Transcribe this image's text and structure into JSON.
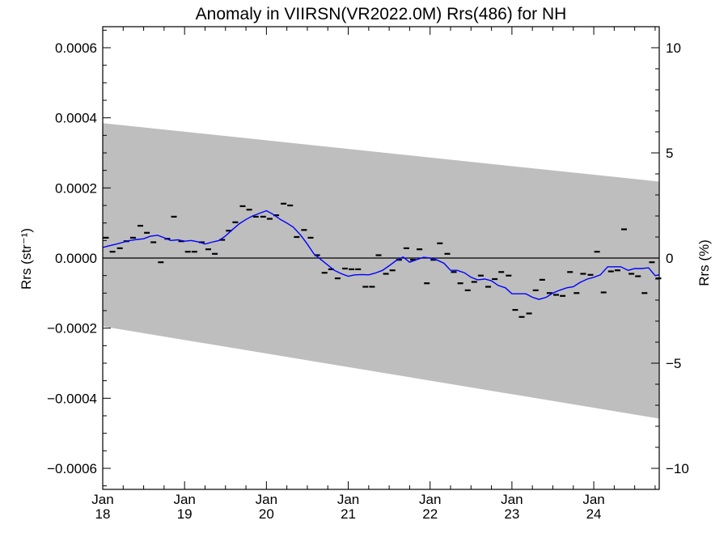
{
  "chart_data": {
    "type": "line",
    "title": "Anomaly in VIIRSN(VR2022.0M) Rrs(486) for NH",
    "ylabel_left": "Rrs (str⁻¹)",
    "ylabel_right": "Rrs (%)",
    "xlim": [
      2018.0,
      2024.8
    ],
    "ylim": [
      -0.00066,
      0.00066
    ],
    "ylim_right": [
      -11,
      11
    ],
    "y_ticks_left": [
      {
        "v": 0.0006,
        "label": "0.0006"
      },
      {
        "v": 0.0004,
        "label": "0.0004"
      },
      {
        "v": 0.0002,
        "label": "0.0002"
      },
      {
        "v": 0.0,
        "label": "0.0000"
      },
      {
        "v": -0.0002,
        "label": "−0.0002"
      },
      {
        "v": -0.0004,
        "label": "−0.0004"
      },
      {
        "v": -0.0006,
        "label": "−0.0006"
      }
    ],
    "y_ticks_right": [
      {
        "v": 10,
        "label": "10"
      },
      {
        "v": 5,
        "label": "5"
      },
      {
        "v": 0,
        "label": "0"
      },
      {
        "v": -5,
        "label": "−5"
      },
      {
        "v": -10,
        "label": "−10"
      }
    ],
    "x_ticks": [
      {
        "v": 2018.0,
        "month": "Jan",
        "year": "18"
      },
      {
        "v": 2019.0,
        "month": "Jan",
        "year": "19"
      },
      {
        "v": 2020.0,
        "month": "Jan",
        "year": "20"
      },
      {
        "v": 2021.0,
        "month": "Jan",
        "year": "21"
      },
      {
        "v": 2022.0,
        "month": "Jan",
        "year": "22"
      },
      {
        "v": 2023.0,
        "month": "Jan",
        "year": "23"
      },
      {
        "v": 2024.0,
        "month": "Jan",
        "year": "24"
      }
    ],
    "band": {
      "start": [
        2018.0,
        0.000385,
        -0.000195
      ],
      "end": [
        2024.8,
        0.000218,
        -0.000458
      ]
    },
    "zero_line": 0.0,
    "colors": {
      "band": "#bebebe",
      "line": "#0000ff",
      "points": "#000000",
      "axes": "#000000"
    },
    "monthly_points": [
      [
        2018.04,
        5.8e-05
      ],
      [
        2018.12,
        1.8e-05
      ],
      [
        2018.21,
        2.8e-05
      ],
      [
        2018.29,
        4.8e-05
      ],
      [
        2018.37,
        5.8e-05
      ],
      [
        2018.46,
        9.2e-05
      ],
      [
        2018.54,
        7.2e-05
      ],
      [
        2018.62,
        4.5e-05
      ],
      [
        2018.71,
        -1.2e-05
      ],
      [
        2018.79,
        5.5e-05
      ],
      [
        2018.87,
        0.000118
      ],
      [
        2018.96,
        4.8e-05
      ],
      [
        2019.04,
        1.8e-05
      ],
      [
        2019.12,
        1.8e-05
      ],
      [
        2019.21,
        4.5e-05
      ],
      [
        2019.29,
        2.5e-05
      ],
      [
        2019.37,
        1.2e-05
      ],
      [
        2019.46,
        5.2e-05
      ],
      [
        2019.54,
        7.8e-05
      ],
      [
        2019.62,
        0.000102
      ],
      [
        2019.71,
        0.000148
      ],
      [
        2019.79,
        0.000138
      ],
      [
        2019.87,
        0.000118
      ],
      [
        2019.96,
        0.000118
      ],
      [
        2020.04,
        0.000112
      ],
      [
        2020.12,
        0.000122
      ],
      [
        2020.21,
        0.000155
      ],
      [
        2020.29,
        0.00015
      ],
      [
        2020.37,
        6e-05
      ],
      [
        2020.46,
        8e-05
      ],
      [
        2020.54,
        5.8e-05
      ],
      [
        2020.62,
        8e-06
      ],
      [
        2020.71,
        -4.2e-05
      ],
      [
        2020.79,
        -3.2e-05
      ],
      [
        2020.87,
        -5.8e-05
      ],
      [
        2020.96,
        -3e-05
      ],
      [
        2021.04,
        -3.2e-05
      ],
      [
        2021.12,
        -3.2e-05
      ],
      [
        2021.21,
        -8.2e-05
      ],
      [
        2021.29,
        -8.2e-05
      ],
      [
        2021.37,
        8e-06
      ],
      [
        2021.46,
        -4.5e-05
      ],
      [
        2021.54,
        -3.5e-05
      ],
      [
        2021.62,
        -5e-06
      ],
      [
        2021.71,
        2.8e-05
      ],
      [
        2021.79,
        -5e-06
      ],
      [
        2021.87,
        2.5e-05
      ],
      [
        2021.96,
        -7.2e-05
      ],
      [
        2022.04,
        -5e-06
      ],
      [
        2022.12,
        4.2e-05
      ],
      [
        2022.21,
        1.2e-05
      ],
      [
        2022.29,
        -4e-05
      ],
      [
        2022.37,
        -7.2e-05
      ],
      [
        2022.46,
        -9.2e-05
      ],
      [
        2022.54,
        -6.8e-05
      ],
      [
        2022.62,
        -5e-05
      ],
      [
        2022.71,
        -8.2e-05
      ],
      [
        2022.79,
        -6e-05
      ],
      [
        2022.87,
        -4e-05
      ],
      [
        2022.96,
        -5e-05
      ],
      [
        2023.04,
        -0.000148
      ],
      [
        2023.12,
        -0.000168
      ],
      [
        2023.21,
        -0.000158
      ],
      [
        2023.29,
        -9.2e-05
      ],
      [
        2023.37,
        -6.2e-05
      ],
      [
        2023.46,
        -0.0001
      ],
      [
        2023.54,
        -0.000105
      ],
      [
        2023.62,
        -0.000108
      ],
      [
        2023.71,
        -4e-05
      ],
      [
        2023.79,
        -0.0001
      ],
      [
        2023.87,
        -4.5e-05
      ],
      [
        2023.96,
        -4.8e-05
      ],
      [
        2024.04,
        1.8e-05
      ],
      [
        2024.12,
        -9.8e-05
      ],
      [
        2024.21,
        -3.8e-05
      ],
      [
        2024.29,
        -3.5e-05
      ],
      [
        2024.37,
        8.2e-05
      ],
      [
        2024.46,
        -4.5e-05
      ],
      [
        2024.54,
        -5.2e-05
      ],
      [
        2024.62,
        -0.0001
      ],
      [
        2024.71,
        -1.2e-05
      ],
      [
        2024.79,
        -5.8e-05
      ]
    ],
    "running_mean": [
      [
        2018.0,
        3e-05
      ],
      [
        2018.08,
        3.5e-05
      ],
      [
        2018.17,
        4e-05
      ],
      [
        2018.25,
        4.5e-05
      ],
      [
        2018.33,
        5e-05
      ],
      [
        2018.42,
        5.3e-05
      ],
      [
        2018.5,
        5.5e-05
      ],
      [
        2018.58,
        6.2e-05
      ],
      [
        2018.67,
        6.5e-05
      ],
      [
        2018.75,
        5.8e-05
      ],
      [
        2018.83,
        5e-05
      ],
      [
        2018.92,
        5.2e-05
      ],
      [
        2019.0,
        4.8e-05
      ],
      [
        2019.08,
        5e-05
      ],
      [
        2019.17,
        4.6e-05
      ],
      [
        2019.25,
        4e-05
      ],
      [
        2019.33,
        4.5e-05
      ],
      [
        2019.42,
        5e-05
      ],
      [
        2019.5,
        6.3e-05
      ],
      [
        2019.58,
        8e-05
      ],
      [
        2019.67,
        9.8e-05
      ],
      [
        2019.75,
        0.00011
      ],
      [
        2019.83,
        0.00012
      ],
      [
        2019.92,
        0.000128
      ],
      [
        2020.0,
        0.000135
      ],
      [
        2020.08,
        0.000125
      ],
      [
        2020.17,
        0.00011
      ],
      [
        2020.25,
        0.0001
      ],
      [
        2020.33,
        8.8e-05
      ],
      [
        2020.42,
        6.5e-05
      ],
      [
        2020.5,
        4e-05
      ],
      [
        2020.58,
        1.2e-05
      ],
      [
        2020.67,
        -5e-06
      ],
      [
        2020.75,
        -2e-05
      ],
      [
        2020.83,
        -3.5e-05
      ],
      [
        2020.92,
        -4.5e-05
      ],
      [
        2021.0,
        -5.2e-05
      ],
      [
        2021.08,
        -4.8e-05
      ],
      [
        2021.17,
        -4.7e-05
      ],
      [
        2021.25,
        -4.8e-05
      ],
      [
        2021.33,
        -4.3e-05
      ],
      [
        2021.42,
        -3.5e-05
      ],
      [
        2021.5,
        -2.2e-05
      ],
      [
        2021.58,
        -8e-06
      ],
      [
        2021.67,
        3e-06
      ],
      [
        2021.75,
        -1.2e-05
      ],
      [
        2021.83,
        -5e-06
      ],
      [
        2021.92,
        2e-06
      ],
      [
        2022.0,
        0.0
      ],
      [
        2022.08,
        -5e-06
      ],
      [
        2022.17,
        -1.5e-05
      ],
      [
        2022.25,
        -3.5e-05
      ],
      [
        2022.33,
        -3.5e-05
      ],
      [
        2022.42,
        -4.2e-05
      ],
      [
        2022.5,
        -5.5e-05
      ],
      [
        2022.58,
        -6.2e-05
      ],
      [
        2022.67,
        -6e-05
      ],
      [
        2022.75,
        -6.5e-05
      ],
      [
        2022.83,
        -7.8e-05
      ],
      [
        2022.92,
        -8.5e-05
      ],
      [
        2023.0,
        -0.000102
      ],
      [
        2023.08,
        -0.000102
      ],
      [
        2023.17,
        -0.000102
      ],
      [
        2023.25,
        -0.000112
      ],
      [
        2023.33,
        -0.000118
      ],
      [
        2023.42,
        -0.000112
      ],
      [
        2023.5,
        -0.0001
      ],
      [
        2023.58,
        -9.2e-05
      ],
      [
        2023.67,
        -8.5e-05
      ],
      [
        2023.75,
        -8.2e-05
      ],
      [
        2023.83,
        -7e-05
      ],
      [
        2023.92,
        -6e-05
      ],
      [
        2024.0,
        -5.5e-05
      ],
      [
        2024.08,
        -4.8e-05
      ],
      [
        2024.17,
        -2.5e-05
      ],
      [
        2024.25,
        -2.5e-05
      ],
      [
        2024.33,
        -2.5e-05
      ],
      [
        2024.42,
        -3.5e-05
      ],
      [
        2024.5,
        -3e-05
      ],
      [
        2024.58,
        -3e-05
      ],
      [
        2024.67,
        -2.8e-05
      ],
      [
        2024.75,
        -5e-05
      ],
      [
        2024.8,
        -4.8e-05
      ]
    ]
  }
}
